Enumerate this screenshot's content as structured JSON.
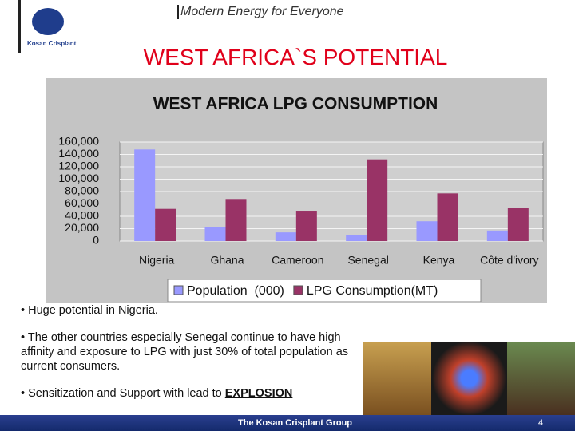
{
  "header": {
    "logo_text": "Kosan Crisplant",
    "tagline": "Modern Energy for Everyone",
    "title": "WEST AFRICA`S POTENTIAL"
  },
  "chart_data": {
    "type": "bar",
    "title": "WEST AFRICA LPG CONSUMPTION",
    "categories": [
      "Nigeria",
      "Ghana",
      "Cameroon",
      "Senegal",
      "Kenya",
      "Côte d'ivory"
    ],
    "series": [
      {
        "name": "Population  (000)",
        "color": "#9999ff",
        "values": [
          148000,
          22000,
          14000,
          10000,
          32000,
          17000
        ]
      },
      {
        "name": "LPG Consumption(MT)",
        "color": "#993366",
        "values": [
          52000,
          68000,
          49000,
          132000,
          77000,
          54000
        ]
      }
    ],
    "ylim": [
      0,
      160000
    ],
    "yticks": [
      0,
      {
        "value": 20000,
        "label": "20,000"
      },
      {
        "value": 40000,
        "label": "40,000"
      },
      {
        "value": 60000,
        "label": "60,000"
      },
      {
        "value": 80000,
        "label": "80,000"
      },
      {
        "value": 100000,
        "label": "100,000"
      },
      {
        "value": 120000,
        "label": "120,000"
      },
      {
        "value": 140000,
        "label": "140,000"
      },
      {
        "value": 160000,
        "label": "160,000"
      }
    ],
    "grid": true,
    "legend": "bottom"
  },
  "bullets": [
    "Huge potential in Nigeria.",
    "The other countries especially Senegal continue to have high affinity and exposure to LPG with just 30% of total population as current consumers.",
    {
      "text": "Sensitization and Support with lead to ",
      "emphasis": "EXPLOSION"
    }
  ],
  "footer": {
    "group": "The Kosan Crisplant Group",
    "page": "4"
  }
}
